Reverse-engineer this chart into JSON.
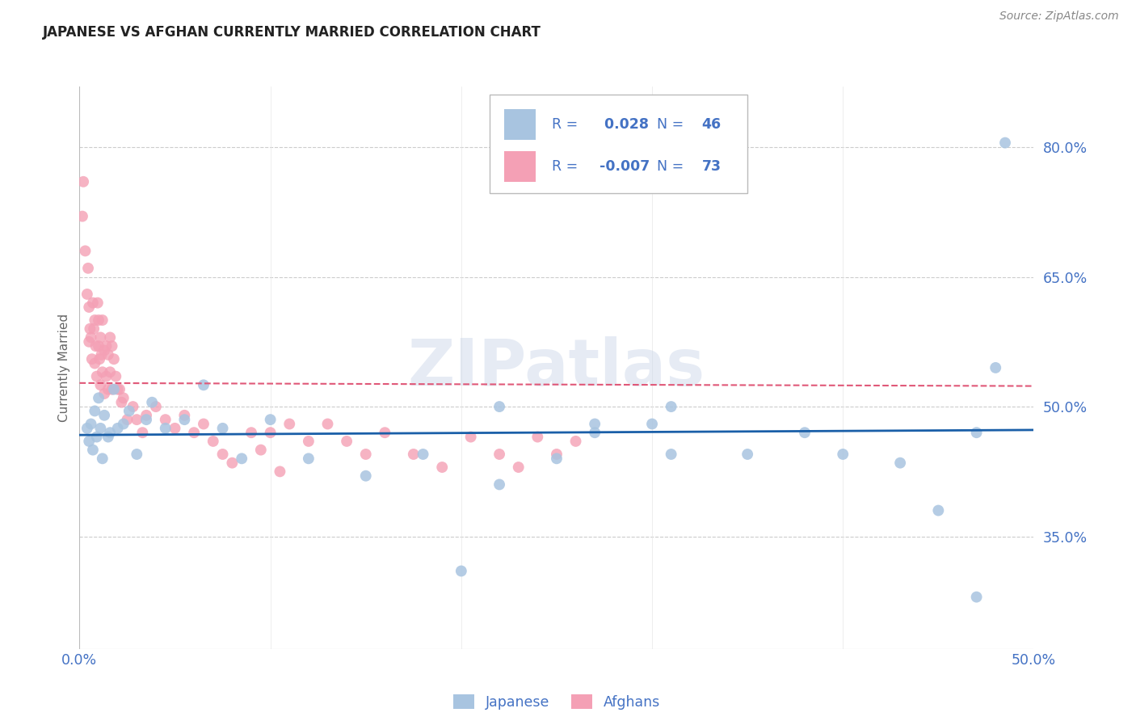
{
  "title": "JAPANESE VS AFGHAN CURRENTLY MARRIED CORRELATION CHART",
  "source": "Source: ZipAtlas.com",
  "ylabel": "Currently Married",
  "legend_label1": "Japanese",
  "legend_label2": "Afghans",
  "r1": 0.028,
  "n1": 46,
  "r2": -0.007,
  "n2": 73,
  "xlim": [
    0.0,
    50.0
  ],
  "ylim": [
    22.0,
    87.0
  ],
  "yticks": [
    35.0,
    50.0,
    65.0,
    80.0
  ],
  "xticks": [
    0.0,
    50.0
  ],
  "color_japanese": "#a8c4e0",
  "color_afghan": "#f4a0b5",
  "color_line_japanese": "#1a5fa8",
  "color_line_afghan": "#e05878",
  "watermark": "ZIPatlas",
  "japanese_x": [
    0.4,
    0.5,
    0.6,
    0.7,
    0.8,
    0.9,
    1.0,
    1.1,
    1.2,
    1.3,
    1.5,
    1.6,
    1.8,
    2.0,
    2.3,
    2.6,
    3.0,
    3.5,
    3.8,
    4.5,
    5.5,
    6.5,
    7.5,
    8.5,
    10.0,
    12.0,
    15.0,
    18.0,
    20.0,
    22.0,
    25.0,
    27.0,
    30.0,
    31.0,
    35.0,
    40.0,
    43.0,
    45.0,
    47.0,
    48.0,
    22.0,
    27.0,
    31.0,
    38.0,
    47.0,
    48.5
  ],
  "japanese_y": [
    47.5,
    46.0,
    48.0,
    45.0,
    49.5,
    46.5,
    51.0,
    47.5,
    44.0,
    49.0,
    46.5,
    47.0,
    52.0,
    47.5,
    48.0,
    49.5,
    44.5,
    48.5,
    50.5,
    47.5,
    48.5,
    52.5,
    47.5,
    44.0,
    48.5,
    44.0,
    42.0,
    44.5,
    31.0,
    41.0,
    44.0,
    48.0,
    48.0,
    44.5,
    44.5,
    44.5,
    43.5,
    38.0,
    28.0,
    54.5,
    50.0,
    47.0,
    50.0,
    47.0,
    47.0,
    80.5
  ],
  "afghan_x": [
    0.15,
    0.2,
    0.3,
    0.4,
    0.45,
    0.5,
    0.5,
    0.55,
    0.6,
    0.65,
    0.7,
    0.75,
    0.8,
    0.8,
    0.85,
    0.9,
    0.95,
    1.0,
    1.0,
    1.05,
    1.1,
    1.1,
    1.15,
    1.2,
    1.2,
    1.3,
    1.3,
    1.4,
    1.4,
    1.5,
    1.5,
    1.6,
    1.6,
    1.7,
    1.7,
    1.8,
    1.9,
    2.0,
    2.1,
    2.2,
    2.3,
    2.5,
    2.8,
    3.0,
    3.3,
    3.5,
    4.0,
    4.5,
    5.0,
    5.5,
    6.0,
    6.5,
    7.0,
    7.5,
    8.0,
    9.0,
    9.5,
    10.0,
    10.5,
    11.0,
    12.0,
    13.0,
    14.0,
    15.0,
    16.0,
    17.5,
    19.0,
    20.5,
    22.0,
    23.0,
    24.0,
    25.0,
    26.0
  ],
  "afghan_y": [
    72.0,
    76.0,
    68.0,
    63.0,
    66.0,
    61.5,
    57.5,
    59.0,
    58.0,
    55.5,
    62.0,
    59.0,
    55.0,
    60.0,
    57.0,
    53.5,
    62.0,
    57.0,
    60.0,
    55.5,
    52.5,
    58.0,
    56.0,
    60.0,
    54.0,
    56.5,
    51.5,
    57.0,
    53.5,
    56.0,
    52.0,
    58.0,
    54.0,
    57.0,
    52.0,
    55.5,
    53.5,
    52.0,
    52.0,
    50.5,
    51.0,
    48.5,
    50.0,
    48.5,
    47.0,
    49.0,
    50.0,
    48.5,
    47.5,
    49.0,
    47.0,
    48.0,
    46.0,
    44.5,
    43.5,
    47.0,
    45.0,
    47.0,
    42.5,
    48.0,
    46.0,
    48.0,
    46.0,
    44.5,
    47.0,
    44.5,
    43.0,
    46.5,
    44.5,
    43.0,
    46.5,
    44.5,
    46.0
  ]
}
